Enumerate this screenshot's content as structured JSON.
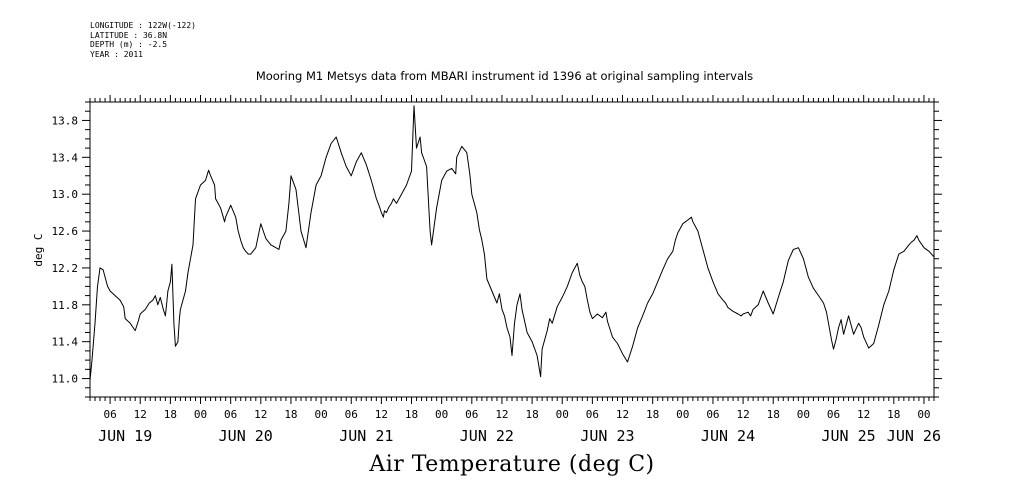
{
  "header": {
    "longitude": "LONGITUDE : 122W(-122)",
    "latitude": "LATITUDE : 36.8N",
    "depth": "DEPTH (m) : -2.5",
    "year": "YEAR : 2011"
  },
  "chart_data": {
    "type": "line",
    "title": "Mooring M1 Metsys data from MBARI instrument id 1396 at original sampling intervals",
    "bottom_title": "Air Temperature (deg C)",
    "ylabel": "deg C",
    "xlabel": "",
    "ylim": [
      10.8,
      14.0
    ],
    "xlim_hours": [
      2,
      170
    ],
    "x_unit": "hours since JUN 19 00:00, 2011",
    "yticks": [
      "11.0",
      "11.4",
      "11.8",
      "12.2",
      "12.6",
      "13.0",
      "13.4",
      "13.8"
    ],
    "ytick_values": [
      11.0,
      11.4,
      11.8,
      12.2,
      12.6,
      13.0,
      13.4,
      13.8
    ],
    "hour_labels": [
      "06",
      "12",
      "18",
      "00",
      "06",
      "12",
      "18",
      "00",
      "06",
      "12",
      "18",
      "00",
      "06",
      "12",
      "18",
      "00",
      "06",
      "12",
      "18",
      "00",
      "06",
      "12",
      "18",
      "00",
      "06",
      "12",
      "18",
      "00"
    ],
    "hour_label_positions": [
      6,
      12,
      18,
      24,
      30,
      36,
      42,
      48,
      54,
      60,
      66,
      72,
      78,
      84,
      90,
      96,
      102,
      108,
      114,
      120,
      126,
      132,
      138,
      144,
      150,
      156,
      162,
      168
    ],
    "day_labels": [
      "JUN 19",
      "JUN 20",
      "JUN 21",
      "JUN 22",
      "JUN 23",
      "JUN 24",
      "JUN 25",
      "JUN 26"
    ],
    "day_label_positions": [
      9,
      33,
      57,
      81,
      105,
      129,
      153,
      166
    ],
    "grid": false,
    "series": [
      {
        "x": [
          2,
          2.4,
          3,
          3.5,
          4,
          4.6,
          5,
          5.5,
          6,
          7,
          8,
          8.7,
          9,
          10,
          11,
          11.6,
          12,
          13,
          13.8,
          14.5,
          15,
          15.5,
          16,
          16.6,
          17,
          17.5,
          18,
          18.3,
          18.7,
          19,
          19.5,
          19.8,
          20,
          21,
          21.5,
          22,
          22.5,
          23,
          24,
          25,
          25.6,
          26,
          26.8,
          27,
          28,
          28.8,
          29,
          30,
          31,
          31.5,
          32,
          32.5,
          33,
          33.5,
          34,
          35,
          36,
          36.5,
          37,
          38,
          39,
          39.6,
          40,
          41,
          41.6,
          42,
          43,
          43.6,
          44,
          45,
          46,
          47,
          48,
          49,
          50,
          51,
          52,
          53,
          54,
          55,
          56,
          57,
          58,
          59,
          59.5,
          60,
          60.4,
          60.6,
          61,
          61.5,
          62,
          62.4,
          63,
          63.3,
          64,
          65,
          66,
          66.5,
          67,
          67.7,
          68,
          69,
          69.7,
          70,
          71,
          72,
          73,
          74,
          74.8,
          75,
          76,
          77,
          77.6,
          78,
          79,
          79.5,
          80,
          80.5,
          81,
          82,
          83,
          83.5,
          84,
          84.5,
          85,
          85.6,
          86,
          86.5,
          87,
          87.6,
          88,
          89,
          90,
          91,
          91.7,
          92,
          93,
          93.5,
          94,
          95,
          96,
          97,
          98,
          99,
          99.5,
          100,
          100.5,
          101,
          101.5,
          102,
          103,
          104,
          104.7,
          105,
          106,
          107,
          108,
          109,
          110,
          111,
          112,
          113,
          114,
          115,
          116,
          117,
          118,
          118.5,
          119,
          120,
          121,
          121.7,
          122,
          123,
          124,
          125,
          126,
          127,
          128,
          128.5,
          129,
          130,
          131,
          131.6,
          132,
          133,
          133.5,
          134,
          135,
          136,
          137,
          138,
          139,
          140,
          141,
          142,
          143,
          144,
          145,
          146,
          147,
          148,
          148.6,
          149,
          149.6,
          150,
          150.5,
          151,
          151.5,
          152,
          153,
          154,
          155,
          155.5,
          156,
          157,
          158,
          159,
          160,
          161,
          162,
          163,
          164,
          165,
          165.5,
          166,
          166.6,
          167,
          168,
          169,
          170
        ],
        "y": [
          10.98,
          11.2,
          11.6,
          12.0,
          12.2,
          12.18,
          12.1,
          12.0,
          11.95,
          11.9,
          11.85,
          11.78,
          11.65,
          11.6,
          11.52,
          11.62,
          11.7,
          11.75,
          11.82,
          11.85,
          11.9,
          11.8,
          11.88,
          11.75,
          11.68,
          11.95,
          12.05,
          12.24,
          11.6,
          11.35,
          11.4,
          11.65,
          11.75,
          11.95,
          12.15,
          12.3,
          12.45,
          12.95,
          13.1,
          13.15,
          13.26,
          13.2,
          13.1,
          12.95,
          12.85,
          12.7,
          12.75,
          12.88,
          12.75,
          12.6,
          12.5,
          12.42,
          12.38,
          12.35,
          12.35,
          12.42,
          12.68,
          12.6,
          12.52,
          12.45,
          12.42,
          12.4,
          12.5,
          12.6,
          12.9,
          13.2,
          13.05,
          12.78,
          12.6,
          12.42,
          12.8,
          13.1,
          13.2,
          13.4,
          13.55,
          13.62,
          13.45,
          13.3,
          13.2,
          13.35,
          13.45,
          13.32,
          13.15,
          12.95,
          12.88,
          12.8,
          12.75,
          12.82,
          12.8,
          12.86,
          12.9,
          12.95,
          12.9,
          12.93,
          13.0,
          13.1,
          13.25,
          13.96,
          13.5,
          13.62,
          13.45,
          13.3,
          12.6,
          12.45,
          12.85,
          13.15,
          13.25,
          13.28,
          13.22,
          13.4,
          13.52,
          13.45,
          13.22,
          13.0,
          12.8,
          12.62,
          12.5,
          12.35,
          12.08,
          11.95,
          11.82,
          11.92,
          11.75,
          11.68,
          11.55,
          11.45,
          11.25,
          11.6,
          11.8,
          11.92,
          11.75,
          11.5,
          11.4,
          11.25,
          11.02,
          11.32,
          11.52,
          11.65,
          11.6,
          11.78,
          11.88,
          12.0,
          12.15,
          12.25,
          12.12,
          12.05,
          12.0,
          11.85,
          11.72,
          11.65,
          11.7,
          11.66,
          11.72,
          11.62,
          11.45,
          11.38,
          11.27,
          11.18,
          11.35,
          11.55,
          11.68,
          11.82,
          11.92,
          12.05,
          12.18,
          12.3,
          12.38,
          12.5,
          12.58,
          12.68,
          12.72,
          12.75,
          12.7,
          12.6,
          12.4,
          12.2,
          12.05,
          11.92,
          11.85,
          11.82,
          11.77,
          11.73,
          11.7,
          11.68,
          11.7,
          11.72,
          11.68,
          11.75,
          11.8,
          11.95,
          11.82,
          11.7,
          11.88,
          12.05,
          12.28,
          12.4,
          12.42,
          12.3,
          12.1,
          11.98,
          11.9,
          11.82,
          11.72,
          11.6,
          11.42,
          11.32,
          11.42,
          11.55,
          11.64,
          11.48,
          11.68,
          11.48,
          11.6,
          11.55,
          11.45,
          11.33,
          11.38,
          11.58,
          11.8,
          11.95,
          12.18,
          12.35,
          12.38,
          12.45,
          12.48,
          12.5,
          12.55,
          12.5,
          12.42,
          12.38,
          12.32
        ]
      }
    ]
  }
}
